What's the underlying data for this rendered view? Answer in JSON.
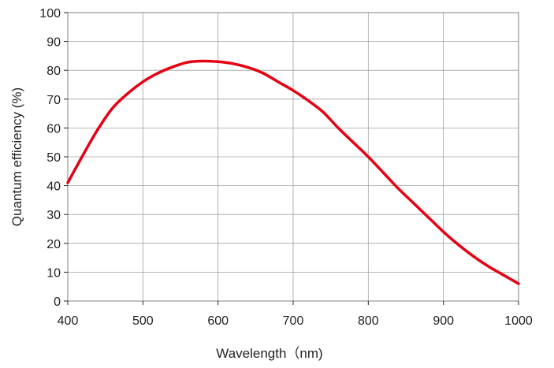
{
  "chart_data": {
    "type": "line",
    "title": "",
    "xlabel": "Wavelength（nm)",
    "ylabel": "Quantum efficiency (%)",
    "xlim": [
      400,
      1000
    ],
    "ylim": [
      0,
      100
    ],
    "xticks": [
      400,
      500,
      600,
      700,
      800,
      900,
      1000
    ],
    "yticks": [
      0,
      10,
      20,
      30,
      40,
      50,
      60,
      70,
      80,
      90,
      100
    ],
    "x_tick_labels": [
      "400",
      "500",
      "600",
      "700",
      "800",
      "900",
      "1000"
    ],
    "y_tick_labels": [
      "0",
      "10",
      "20",
      "30",
      "40",
      "50",
      "60",
      "70",
      "80",
      "90",
      "100"
    ],
    "grid": true,
    "legend": "none",
    "series": [
      {
        "name": "Quantum efficiency",
        "color": "#e60012",
        "x": [
          400,
          420,
          440,
          460,
          480,
          500,
          520,
          540,
          560,
          580,
          600,
          620,
          640,
          660,
          680,
          700,
          720,
          740,
          760,
          780,
          800,
          820,
          840,
          860,
          880,
          900,
          920,
          940,
          960,
          980,
          1000
        ],
        "y": [
          41,
          50.5,
          59.5,
          67,
          72,
          76,
          79,
          81.2,
          82.8,
          83.2,
          83,
          82.3,
          81,
          79,
          76,
          73,
          69.5,
          65.5,
          60,
          55,
          50,
          44.5,
          39,
          34,
          29,
          24,
          19.5,
          15.5,
          12,
          9,
          6
        ]
      }
    ]
  }
}
